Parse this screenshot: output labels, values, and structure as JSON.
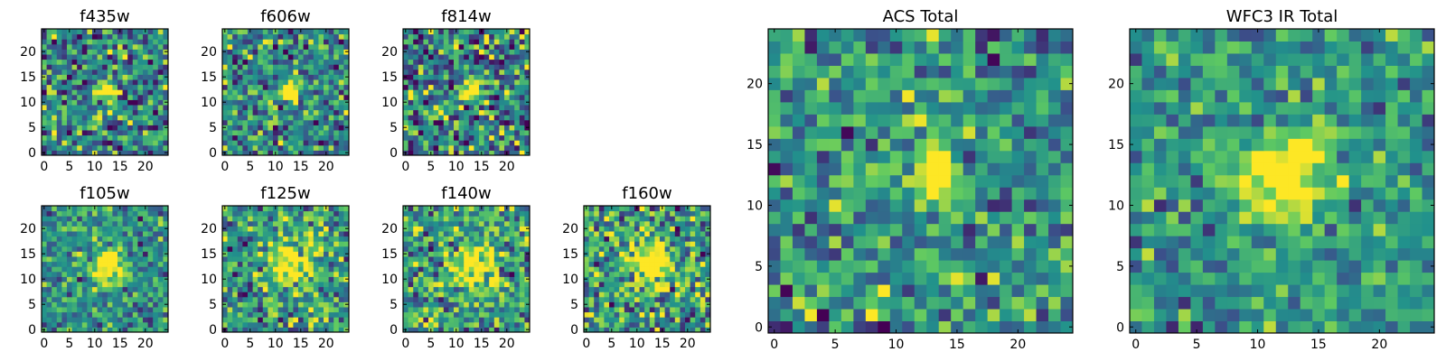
{
  "chart_data": [
    {
      "id": "f435w",
      "type": "heatmap",
      "title": "f435w",
      "size": 25,
      "xticks": [
        "0",
        "5",
        "10",
        "15",
        "20"
      ],
      "yticks": [
        "0",
        "5",
        "10",
        "15",
        "20"
      ],
      "blob": {
        "x": 12.5,
        "y": 12.5,
        "sigma": 1.2,
        "amp": 1.1
      },
      "noise": 0.5,
      "base": 0.45,
      "seed": 11
    },
    {
      "id": "f606w",
      "type": "heatmap",
      "title": "f606w",
      "size": 25,
      "xticks": [
        "0",
        "5",
        "10",
        "15",
        "20"
      ],
      "yticks": [
        "0",
        "5",
        "10",
        "15",
        "20"
      ],
      "blob": {
        "x": 13.0,
        "y": 12.0,
        "sigma": 1.2,
        "amp": 1.1
      },
      "noise": 0.45,
      "base": 0.48,
      "seed": 23
    },
    {
      "id": "f814w",
      "type": "heatmap",
      "title": "f814w",
      "size": 25,
      "xticks": [
        "0",
        "5",
        "10",
        "15",
        "20"
      ],
      "yticks": [
        "0",
        "5",
        "10",
        "15",
        "20"
      ],
      "blob": {
        "x": 13.5,
        "y": 12.5,
        "sigma": 1.3,
        "amp": 1.0
      },
      "noise": 0.55,
      "base": 0.45,
      "seed": 37
    },
    {
      "id": "f105w",
      "type": "heatmap",
      "title": "f105w",
      "size": 25,
      "xticks": [
        "0",
        "5",
        "10",
        "15",
        "20"
      ],
      "yticks": [
        "0",
        "5",
        "10",
        "15",
        "20"
      ],
      "blob": {
        "x": 12.5,
        "y": 12.5,
        "sigma": 2.0,
        "amp": 0.9
      },
      "noise": 0.35,
      "base": 0.5,
      "seed": 41
    },
    {
      "id": "f125w",
      "type": "heatmap",
      "title": "f125w",
      "size": 25,
      "xticks": [
        "0",
        "5",
        "10",
        "15",
        "20"
      ],
      "yticks": [
        "0",
        "5",
        "10",
        "15",
        "20"
      ],
      "blob": {
        "x": 13.0,
        "y": 13.0,
        "sigma": 2.6,
        "amp": 0.7
      },
      "noise": 0.45,
      "base": 0.55,
      "seed": 53
    },
    {
      "id": "f140w",
      "type": "heatmap",
      "title": "f140w",
      "size": 25,
      "xticks": [
        "0",
        "5",
        "10",
        "15",
        "20"
      ],
      "yticks": [
        "0",
        "5",
        "10",
        "15",
        "20"
      ],
      "blob": {
        "x": 13.0,
        "y": 13.0,
        "sigma": 2.8,
        "amp": 0.6
      },
      "noise": 0.45,
      "base": 0.58,
      "seed": 67
    },
    {
      "id": "f160w",
      "type": "heatmap",
      "title": "f160w",
      "size": 25,
      "xticks": [
        "0",
        "5",
        "10",
        "15",
        "20"
      ],
      "yticks": [
        "0",
        "5",
        "10",
        "15",
        "20"
      ],
      "blob": {
        "x": 13.0,
        "y": 13.0,
        "sigma": 3.0,
        "amp": 0.6
      },
      "noise": 0.5,
      "base": 0.55,
      "seed": 79
    },
    {
      "id": "acs",
      "type": "heatmap",
      "title": "ACS Total",
      "size": 25,
      "xticks": [
        "0",
        "5",
        "10",
        "15",
        "20"
      ],
      "yticks": [
        "0",
        "5",
        "10",
        "15",
        "20"
      ],
      "blob": {
        "x": 13.0,
        "y": 12.5,
        "sigma": 1.3,
        "amp": 1.0
      },
      "noise": 0.4,
      "base": 0.5,
      "seed": 97
    },
    {
      "id": "wfc3",
      "type": "heatmap",
      "title": "WFC3 IR Total",
      "size": 25,
      "xticks": [
        "0",
        "5",
        "10",
        "15",
        "20"
      ],
      "yticks": [
        "0",
        "5",
        "10",
        "15",
        "20"
      ],
      "blob": {
        "x": 12.5,
        "y": 12.5,
        "sigma": 2.4,
        "amp": 0.75
      },
      "noise": 0.32,
      "base": 0.52,
      "seed": 113
    }
  ],
  "colormap": {
    "name": "viridis",
    "colors": [
      "#440154",
      "#3b528b",
      "#21918c",
      "#5ec962",
      "#fde725"
    ]
  }
}
